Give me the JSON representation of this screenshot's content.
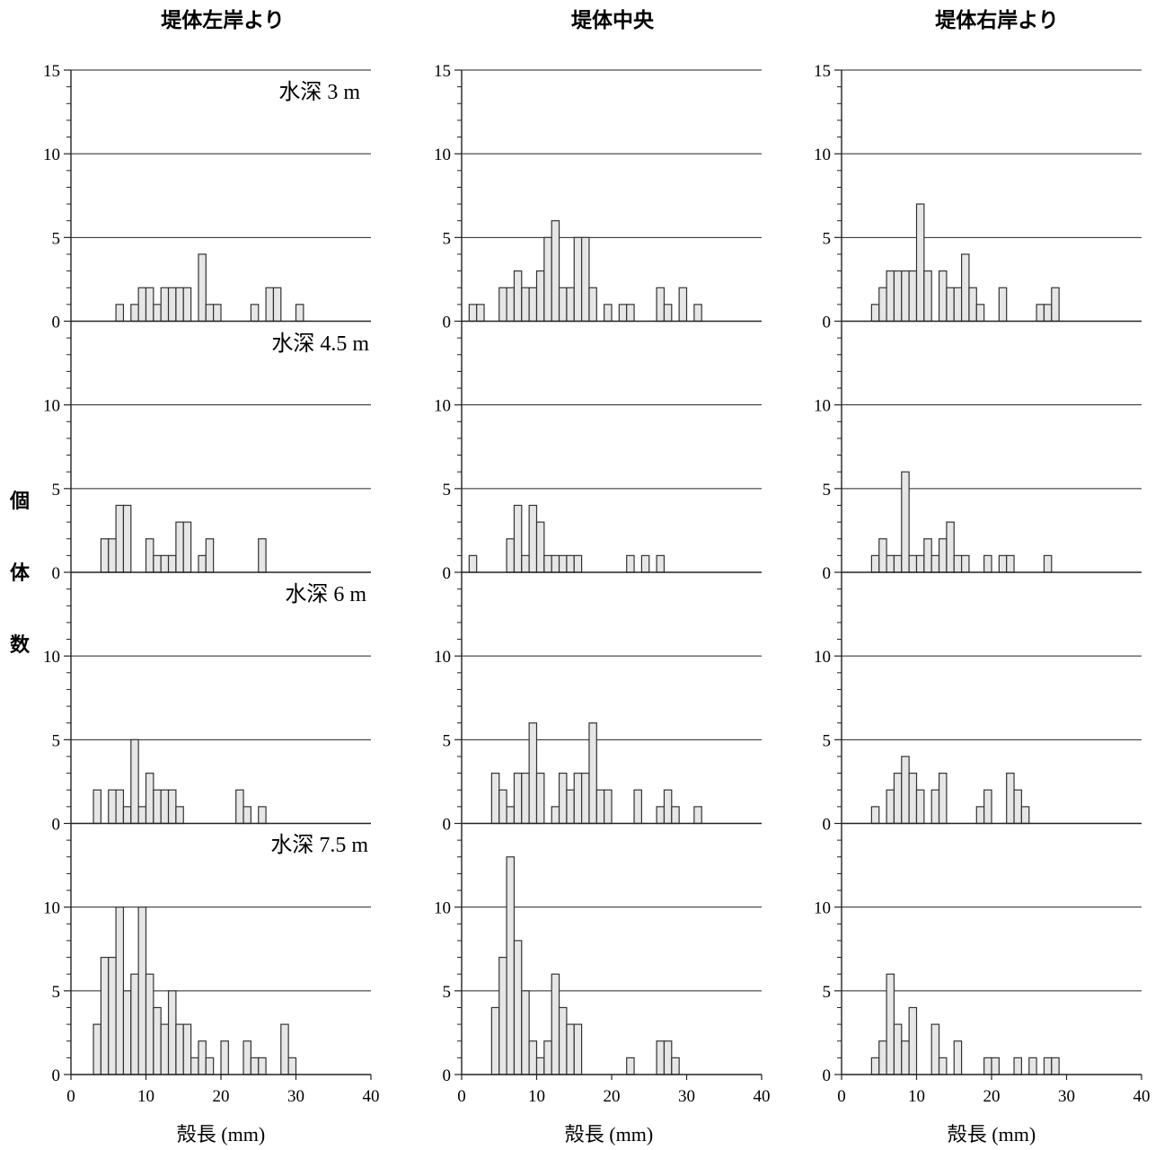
{
  "chart_data": {
    "type": "bar",
    "subtype": "histogram-grid",
    "column_titles": [
      "堤体左岸より",
      "堤体中央",
      "堤体右岸より"
    ],
    "row_labels": [
      "水深 3 m",
      "水深 4.5 m",
      "水深 6 m",
      "水深 7.5 m"
    ],
    "ylabel": "個体数",
    "ylabel_chars": [
      "個",
      "体",
      "数"
    ],
    "xlabel": "殻長 (mm)",
    "xlim": [
      0,
      40
    ],
    "ylim": [
      0,
      15
    ],
    "x_ticks": [
      0,
      10,
      20,
      30,
      40
    ],
    "y_ticks": [
      0,
      5,
      10,
      15
    ],
    "grid": "horizontal at 5, 10, 15",
    "bin_width": 1,
    "panels": [
      {
        "column": 0,
        "row": 0,
        "bins": [
          [
            6,
            1
          ],
          [
            8,
            1
          ],
          [
            9,
            2
          ],
          [
            10,
            2
          ],
          [
            11,
            1
          ],
          [
            12,
            2
          ],
          [
            13,
            2
          ],
          [
            14,
            2
          ],
          [
            15,
            2
          ],
          [
            17,
            4
          ],
          [
            18,
            1
          ],
          [
            19,
            1
          ],
          [
            24,
            1
          ],
          [
            26,
            2
          ],
          [
            27,
            2
          ],
          [
            30,
            1
          ]
        ]
      },
      {
        "column": 1,
        "row": 0,
        "bins": [
          [
            1,
            1
          ],
          [
            2,
            1
          ],
          [
            5,
            2
          ],
          [
            6,
            2
          ],
          [
            7,
            3
          ],
          [
            8,
            2
          ],
          [
            9,
            2
          ],
          [
            10,
            3
          ],
          [
            11,
            5
          ],
          [
            12,
            6
          ],
          [
            13,
            2
          ],
          [
            14,
            2
          ],
          [
            15,
            5
          ],
          [
            16,
            5
          ],
          [
            17,
            2
          ],
          [
            19,
            1
          ],
          [
            21,
            1
          ],
          [
            22,
            1
          ],
          [
            26,
            2
          ],
          [
            27,
            1
          ],
          [
            29,
            2
          ],
          [
            31,
            1
          ]
        ]
      },
      {
        "column": 2,
        "row": 0,
        "bins": [
          [
            4,
            1
          ],
          [
            5,
            2
          ],
          [
            6,
            3
          ],
          [
            7,
            3
          ],
          [
            8,
            3
          ],
          [
            9,
            3
          ],
          [
            10,
            7
          ],
          [
            11,
            3
          ],
          [
            13,
            3
          ],
          [
            14,
            2
          ],
          [
            15,
            2
          ],
          [
            16,
            4
          ],
          [
            17,
            2
          ],
          [
            18,
            1
          ],
          [
            21,
            2
          ],
          [
            26,
            1
          ],
          [
            27,
            1
          ],
          [
            28,
            2
          ]
        ]
      },
      {
        "column": 0,
        "row": 1,
        "bins": [
          [
            4,
            2
          ],
          [
            5,
            2
          ],
          [
            6,
            4
          ],
          [
            7,
            4
          ],
          [
            10,
            2
          ],
          [
            11,
            1
          ],
          [
            12,
            1
          ],
          [
            13,
            1
          ],
          [
            14,
            3
          ],
          [
            15,
            3
          ],
          [
            17,
            1
          ],
          [
            18,
            2
          ],
          [
            25,
            2
          ]
        ]
      },
      {
        "column": 1,
        "row": 1,
        "bins": [
          [
            1,
            1
          ],
          [
            6,
            2
          ],
          [
            7,
            4
          ],
          [
            8,
            1
          ],
          [
            9,
            4
          ],
          [
            10,
            3
          ],
          [
            11,
            1
          ],
          [
            12,
            1
          ],
          [
            13,
            1
          ],
          [
            14,
            1
          ],
          [
            15,
            1
          ],
          [
            22,
            1
          ],
          [
            24,
            1
          ],
          [
            26,
            1
          ]
        ]
      },
      {
        "column": 2,
        "row": 1,
        "bins": [
          [
            4,
            1
          ],
          [
            5,
            2
          ],
          [
            6,
            1
          ],
          [
            7,
            1
          ],
          [
            8,
            6
          ],
          [
            9,
            1
          ],
          [
            10,
            1
          ],
          [
            11,
            2
          ],
          [
            12,
            1
          ],
          [
            13,
            2
          ],
          [
            14,
            3
          ],
          [
            15,
            1
          ],
          [
            16,
            1
          ],
          [
            19,
            1
          ],
          [
            21,
            1
          ],
          [
            22,
            1
          ],
          [
            27,
            1
          ]
        ]
      },
      {
        "column": 0,
        "row": 2,
        "bins": [
          [
            3,
            2
          ],
          [
            5,
            2
          ],
          [
            6,
            2
          ],
          [
            7,
            1
          ],
          [
            8,
            5
          ],
          [
            9,
            1
          ],
          [
            10,
            3
          ],
          [
            11,
            2
          ],
          [
            12,
            2
          ],
          [
            13,
            2
          ],
          [
            14,
            1
          ],
          [
            22,
            2
          ],
          [
            23,
            1
          ],
          [
            25,
            1
          ]
        ]
      },
      {
        "column": 1,
        "row": 2,
        "bins": [
          [
            4,
            3
          ],
          [
            5,
            2
          ],
          [
            6,
            1
          ],
          [
            7,
            3
          ],
          [
            8,
            3
          ],
          [
            9,
            6
          ],
          [
            10,
            3
          ],
          [
            12,
            1
          ],
          [
            13,
            3
          ],
          [
            14,
            2
          ],
          [
            15,
            3
          ],
          [
            16,
            3
          ],
          [
            17,
            6
          ],
          [
            18,
            2
          ],
          [
            19,
            2
          ],
          [
            23,
            2
          ],
          [
            26,
            1
          ],
          [
            27,
            2
          ],
          [
            28,
            1
          ],
          [
            31,
            1
          ]
        ]
      },
      {
        "column": 2,
        "row": 2,
        "bins": [
          [
            4,
            1
          ],
          [
            6,
            2
          ],
          [
            7,
            3
          ],
          [
            8,
            4
          ],
          [
            9,
            3
          ],
          [
            10,
            2
          ],
          [
            12,
            2
          ],
          [
            13,
            3
          ],
          [
            18,
            1
          ],
          [
            19,
            2
          ],
          [
            22,
            3
          ],
          [
            23,
            2
          ],
          [
            24,
            1
          ]
        ]
      },
      {
        "column": 0,
        "row": 3,
        "bins": [
          [
            3,
            3
          ],
          [
            4,
            7
          ],
          [
            5,
            7
          ],
          [
            6,
            10
          ],
          [
            7,
            5
          ],
          [
            8,
            6
          ],
          [
            9,
            10
          ],
          [
            10,
            6
          ],
          [
            11,
            4
          ],
          [
            12,
            3
          ],
          [
            13,
            5
          ],
          [
            14,
            3
          ],
          [
            15,
            3
          ],
          [
            16,
            1
          ],
          [
            17,
            2
          ],
          [
            18,
            1
          ],
          [
            20,
            2
          ],
          [
            23,
            2
          ],
          [
            24,
            1
          ],
          [
            25,
            1
          ],
          [
            28,
            3
          ],
          [
            29,
            1
          ]
        ]
      },
      {
        "column": 1,
        "row": 3,
        "bins": [
          [
            4,
            4
          ],
          [
            5,
            7
          ],
          [
            6,
            13
          ],
          [
            7,
            8
          ],
          [
            8,
            5
          ],
          [
            9,
            2
          ],
          [
            10,
            1
          ],
          [
            11,
            2
          ],
          [
            12,
            6
          ],
          [
            13,
            4
          ],
          [
            14,
            3
          ],
          [
            15,
            3
          ],
          [
            22,
            1
          ],
          [
            26,
            2
          ],
          [
            27,
            2
          ],
          [
            28,
            1
          ]
        ]
      },
      {
        "column": 2,
        "row": 3,
        "bins": [
          [
            4,
            1
          ],
          [
            5,
            2
          ],
          [
            6,
            6
          ],
          [
            7,
            3
          ],
          [
            8,
            2
          ],
          [
            9,
            4
          ],
          [
            12,
            3
          ],
          [
            13,
            1
          ],
          [
            15,
            2
          ],
          [
            19,
            1
          ],
          [
            20,
            1
          ],
          [
            23,
            1
          ],
          [
            25,
            1
          ],
          [
            27,
            1
          ],
          [
            28,
            1
          ]
        ]
      }
    ]
  }
}
